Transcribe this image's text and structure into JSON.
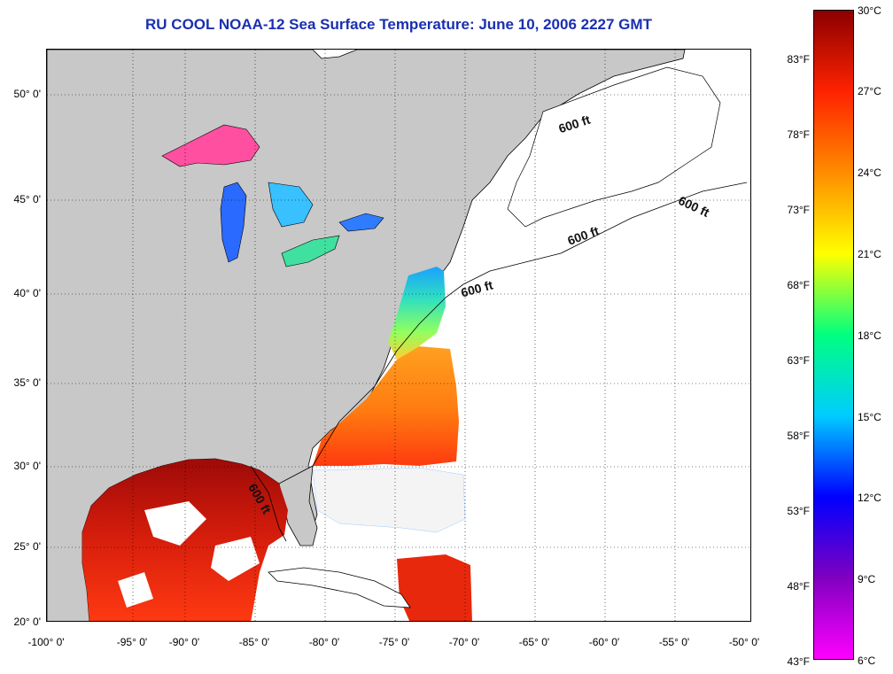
{
  "title": "RU COOL  NOAA-12  Sea Surface Temperature:  June 10, 2006 2227 GMT",
  "map": {
    "lat_range": [
      20,
      52.6
    ],
    "lon_range": [
      -100,
      -50
    ],
    "lat_ticks": [
      "50° 0'",
      "45° 0'",
      "40° 0'",
      "35° 0'",
      "30° 0'",
      "25° 0'",
      "20° 0'"
    ],
    "lon_ticks": [
      "-100° 0'",
      "-95° 0'",
      "-90° 0'",
      "-85° 0'",
      "-80° 0'",
      "-75° 0'",
      "-70° 0'",
      "-65° 0'",
      "-60° 0'",
      "-55° 0'",
      "-50° 0'"
    ],
    "isobath_labels": [
      "600 ft",
      "600 ft",
      "600 ft",
      "600 ft",
      "600 ft"
    ],
    "land_color": "#c8c8c8",
    "no_data_color": "#ffffff"
  },
  "colorbar": {
    "range_c": [
      6,
      30
    ],
    "fahrenheit_labels": [
      "83°F",
      "78°F",
      "73°F",
      "68°F",
      "63°F",
      "58°F",
      "53°F",
      "48°F",
      "43°F"
    ],
    "celsius_labels": [
      "30°C",
      "27°C",
      "24°C",
      "21°C",
      "18°C",
      "15°C",
      "12°C",
      "9°C",
      "6°C"
    ],
    "colors": [
      "#8b0000",
      "#ff2200",
      "#ff8c00",
      "#ffff00",
      "#00ff80",
      "#00ccff",
      "#0000ff",
      "#8000c0",
      "#ff00ff"
    ]
  }
}
